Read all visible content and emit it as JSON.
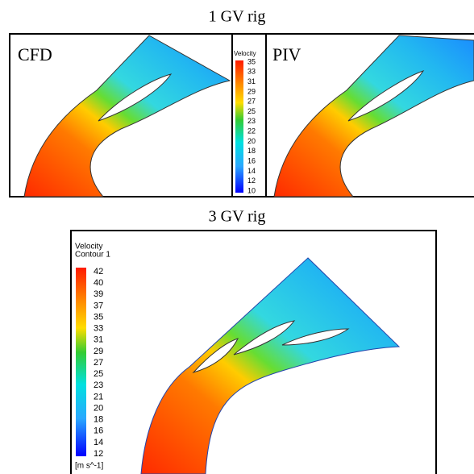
{
  "top": {
    "title": "1 GV rig",
    "panels": [
      {
        "label": "CFD"
      },
      {
        "label": "PIV"
      }
    ],
    "colorbar": {
      "title": "Velocity",
      "labels": [
        "35",
        "33",
        "31",
        "29",
        "27",
        "25",
        "23",
        "22",
        "20",
        "18",
        "16",
        "14",
        "12",
        "10"
      ]
    }
  },
  "bottom": {
    "title": "3 GV rig",
    "colorbar": {
      "title": [
        "Velocity",
        "Contour 1"
      ],
      "labels": [
        "42",
        "40",
        "39",
        "37",
        "35",
        "33",
        "31",
        "29",
        "27",
        "25",
        "23",
        "21",
        "20",
        "18",
        "16",
        "14",
        "12"
      ],
      "unit": "[m s^-1]"
    }
  }
}
